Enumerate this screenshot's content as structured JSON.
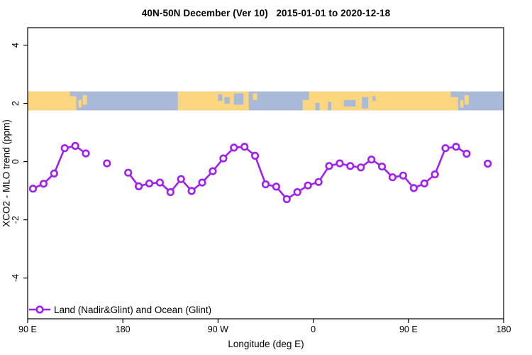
{
  "page": {
    "background": "#ffffff",
    "frame_color": "#000000"
  },
  "chart_data": {
    "type": "line",
    "title": "40N-50N December (Ver 10)   2015-01-01 to 2020-12-18",
    "xlabel": "Longitude (deg E)",
    "ylabel": "XCO2 - MLO trend (ppm)",
    "grid": false,
    "xlim": [
      90,
      540
    ],
    "ylim": [
      -5.4,
      4.6
    ],
    "x_ticks": [
      {
        "value": 90,
        "label": "90 E"
      },
      {
        "value": 180,
        "label": "180"
      },
      {
        "value": 270,
        "label": "90 W"
      },
      {
        "value": 360,
        "label": "0"
      },
      {
        "value": 450,
        "label": "90 E"
      },
      {
        "value": 540,
        "label": "180"
      }
    ],
    "y_ticks": [
      {
        "value": 4,
        "label": "4"
      },
      {
        "value": 2,
        "label": "2"
      },
      {
        "value": 0,
        "label": "0"
      },
      {
        "value": -2,
        "label": "-2"
      },
      {
        "value": -4,
        "label": "-4"
      }
    ],
    "legend_position": "bottom-left",
    "series": [
      {
        "name": "Land (Nadir&Glint) and Ocean (Glint)",
        "color": "#a020f0",
        "marker": "open-circle",
        "marker_fill": "#ffffff",
        "gap_threshold_deg": 12,
        "points": [
          [
            95,
            -0.93
          ],
          [
            105,
            -0.76
          ],
          [
            115,
            -0.41
          ],
          [
            125,
            0.46
          ],
          [
            135,
            0.54
          ],
          [
            145,
            0.28
          ],
          [
            165,
            -0.06
          ],
          [
            185,
            -0.38
          ],
          [
            195,
            -0.85
          ],
          [
            205,
            -0.75
          ],
          [
            215,
            -0.72
          ],
          [
            225,
            -1.05
          ],
          [
            235,
            -0.6
          ],
          [
            245,
            -1.01
          ],
          [
            255,
            -0.72
          ],
          [
            265,
            -0.33
          ],
          [
            275,
            0.11
          ],
          [
            285,
            0.48
          ],
          [
            295,
            0.51
          ],
          [
            305,
            0.2
          ],
          [
            315,
            -0.78
          ],
          [
            325,
            -0.86
          ],
          [
            335,
            -1.29
          ],
          [
            345,
            -1.05
          ],
          [
            355,
            -0.82
          ],
          [
            365,
            -0.7
          ],
          [
            375,
            -0.15
          ],
          [
            385,
            -0.06
          ],
          [
            395,
            -0.15
          ],
          [
            405,
            -0.2
          ],
          [
            415,
            0.07
          ],
          [
            425,
            -0.17
          ],
          [
            435,
            -0.54
          ],
          [
            445,
            -0.48
          ],
          [
            455,
            -0.91
          ],
          [
            465,
            -0.75
          ],
          [
            475,
            -0.44
          ],
          [
            485,
            0.46
          ],
          [
            495,
            0.51
          ],
          [
            505,
            0.27
          ],
          [
            525,
            -0.07
          ]
        ]
      }
    ],
    "map_band": {
      "description": "40N-50N latitude world-map strip drawn across the plot",
      "value_top": 2.41,
      "value_bottom": 1.76,
      "ocean_color": "#a8bad7",
      "land_color": "#fbd67e",
      "base": "ocean",
      "land_segments": [
        [
          90,
          136
        ],
        [
          232,
          299
        ],
        [
          350,
          497
        ]
      ],
      "patches": [
        {
          "type": "ocean",
          "start": 130,
          "end": 136,
          "top": 0.0,
          "height": 0.25
        },
        {
          "type": "land",
          "start": 138,
          "end": 141,
          "top": 0.45,
          "height": 0.4
        },
        {
          "type": "land",
          "start": 142,
          "end": 146,
          "top": 0.2,
          "height": 0.5
        },
        {
          "type": "ocean",
          "start": 270,
          "end": 274,
          "top": 0.15,
          "height": 0.35
        },
        {
          "type": "ocean",
          "start": 276,
          "end": 281,
          "top": 0.3,
          "height": 0.35
        },
        {
          "type": "ocean",
          "start": 285,
          "end": 294,
          "top": 0.1,
          "height": 0.6
        },
        {
          "type": "land",
          "start": 303,
          "end": 307,
          "top": 0.1,
          "height": 0.35
        },
        {
          "type": "ocean",
          "start": 350,
          "end": 356,
          "top": 0.0,
          "height": 0.45
        },
        {
          "type": "ocean",
          "start": 362,
          "end": 366,
          "top": 0.6,
          "height": 0.4
        },
        {
          "type": "ocean",
          "start": 374,
          "end": 377,
          "top": 0.55,
          "height": 0.45
        },
        {
          "type": "ocean",
          "start": 389,
          "end": 400,
          "top": 0.45,
          "height": 0.35
        },
        {
          "type": "ocean",
          "start": 406,
          "end": 412,
          "top": 0.3,
          "height": 0.6
        },
        {
          "type": "ocean",
          "start": 416,
          "end": 419,
          "top": 0.25,
          "height": 0.25
        },
        {
          "type": "ocean",
          "start": 490,
          "end": 497,
          "top": 0.0,
          "height": 0.3
        },
        {
          "type": "land",
          "start": 499,
          "end": 502,
          "top": 0.45,
          "height": 0.4
        },
        {
          "type": "land",
          "start": 503,
          "end": 507,
          "top": 0.2,
          "height": 0.5
        }
      ]
    }
  }
}
